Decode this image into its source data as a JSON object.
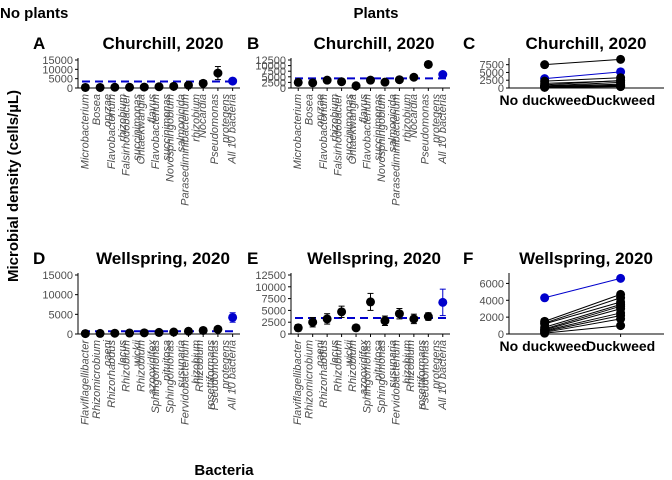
{
  "figure": {
    "header_left": "No plants",
    "header_center": "Plants",
    "y_axis_title": "Microbial density (cells/µL)",
    "x_axis_title": "Bacteria"
  },
  "colors": {
    "point": "#000000",
    "all": "#0000cc",
    "ref": "#0000cc",
    "axis": "#000000"
  },
  "chart_data": [
    {
      "panel": "A",
      "title": "Churchill, 2020",
      "type": "scatter",
      "condition": "No plants",
      "ylim": [
        0,
        15000
      ],
      "yticks": [
        0,
        5000,
        10000,
        15000
      ],
      "reference_line": 3500,
      "categories": [
        "Microbacterium",
        "Bosea\noryzae",
        "Flavobacterium\nrhizobium",
        "Falsirhodobacter\nsuccinimonas",
        "Ohtaekwangia\nflavus",
        "Flavobacterium\nsuccinimonas",
        "Novosphingobium\nsalmonicida",
        "Parasediminibacterium\nrhizobium",
        "Nocardia",
        "Pseudomonas\nprotegens",
        "All 10 bacteria"
      ],
      "values": [
        300,
        300,
        400,
        400,
        500,
        700,
        900,
        1500,
        2500,
        8000,
        3700
      ],
      "errors": [
        150,
        150,
        200,
        200,
        200,
        300,
        400,
        600,
        1000,
        3500,
        1000
      ]
    },
    {
      "panel": "B",
      "title": "Churchill, 2020",
      "type": "scatter",
      "condition": "Plants",
      "ylim": [
        0,
        12500
      ],
      "yticks": [
        0,
        2500,
        5000,
        7500,
        10000,
        12500
      ],
      "reference_line": 4300,
      "categories": [
        "Microbacterium",
        "Bosea\noryzae",
        "Flavobacterium\nrhizobium",
        "Falsirhodobacter\nsuccinimonas",
        "Ohtaekwangia\nflavus",
        "Flavobacterium\nsuccinimonas",
        "Novosphingobium\nsalmonicida",
        "Parasediminibacterium\nrhizobium",
        "Nocardia",
        "Pseudomonas\nprotegens",
        "All 10 bacteria"
      ],
      "values": [
        2500,
        2300,
        3500,
        2800,
        1000,
        3500,
        2600,
        3700,
        4800,
        10500,
        6000
      ],
      "errors": [
        600,
        600,
        700,
        600,
        500,
        700,
        600,
        700,
        900,
        1200,
        1100
      ]
    },
    {
      "panel": "C",
      "title": "Churchill, 2020",
      "type": "line",
      "ylim": [
        0,
        9000
      ],
      "yticks": [
        0,
        2500,
        5000,
        7500
      ],
      "categories": [
        "No duckweed",
        "Duckweed"
      ],
      "series": [
        {
          "values": [
            7500,
            9200
          ]
        },
        {
          "values": [
            3000,
            5200
          ],
          "all": true
        },
        {
          "values": [
            2200,
            3300
          ]
        },
        {
          "values": [
            1500,
            2300
          ]
        },
        {
          "values": [
            1000,
            2400
          ]
        },
        {
          "values": [
            700,
            1800
          ]
        },
        {
          "values": [
            600,
            1200
          ]
        },
        {
          "values": [
            400,
            900
          ]
        },
        {
          "values": [
            300,
            700
          ]
        },
        {
          "values": [
            250,
            500
          ]
        },
        {
          "values": [
            200,
            450
          ]
        }
      ]
    },
    {
      "panel": "D",
      "title": "Wellspring, 2020",
      "type": "scatter",
      "condition": "No plants",
      "ylim": [
        0,
        15000
      ],
      "yticks": [
        0,
        5000,
        10000,
        15000
      ],
      "reference_line": 700,
      "categories": [
        "Flaviflagellibacter",
        "Rhizomicrobium\ncaeni",
        "Rhizorhabdus\nlacus",
        "Rhizobium\nwickii",
        "Rhizobium\nazooxidifex",
        "Sphingomonas\npituitosa",
        "Sphingomonas\nsusunaria",
        "Fervidobacterium\nhizobium",
        "Rhizobium\nrosettiformans",
        "Pseudomonas\nprotegens",
        "All 10 bacteria"
      ],
      "values": [
        100,
        150,
        200,
        250,
        300,
        400,
        500,
        700,
        900,
        1200,
        4200
      ],
      "errors": [
        80,
        100,
        120,
        150,
        200,
        250,
        300,
        400,
        500,
        700,
        1200
      ]
    },
    {
      "panel": "E",
      "title": "Wellspring, 2020",
      "type": "scatter",
      "condition": "Plants",
      "ylim": [
        0,
        12500
      ],
      "yticks": [
        0,
        2500,
        5000,
        7500,
        10000,
        12500
      ],
      "reference_line": 3400,
      "categories": [
        "Flaviflagellibacter",
        "Rhizomicrobium\ncaeni",
        "Rhizorhabdus\nlacus",
        "Rhizobium\nwickii",
        "Rhizobium\nazooxidifex",
        "Sphingomonas\npituitosa",
        "Sphingomonas\nsusunaria",
        "Fervidobacterium\nhizobium",
        "Rhizobium\nrosettiformans",
        "Pseudomonas\nprotegens",
        "All 10 bacteria"
      ],
      "values": [
        1300,
        2500,
        3200,
        4700,
        1300,
        6800,
        2800,
        4300,
        3200,
        3700,
        6700
      ],
      "errors": [
        700,
        1000,
        1100,
        1200,
        600,
        1800,
        1000,
        1100,
        1000,
        800,
        2800
      ]
    },
    {
      "panel": "F",
      "title": "Wellspring, 2020",
      "type": "line",
      "ylim": [
        0,
        7000
      ],
      "yticks": [
        0,
        2000,
        4000,
        6000
      ],
      "categories": [
        "No duckweed",
        "Duckweed"
      ],
      "series": [
        {
          "values": [
            4300,
            6600
          ],
          "all": true
        },
        {
          "values": [
            1500,
            4700
          ]
        },
        {
          "values": [
            1300,
            4300
          ]
        },
        {
          "values": [
            1200,
            3800
          ]
        },
        {
          "values": [
            800,
            3500
          ]
        },
        {
          "values": [
            600,
            3300
          ]
        },
        {
          "values": [
            500,
            3000
          ]
        },
        {
          "values": [
            400,
            2500
          ]
        },
        {
          "values": [
            300,
            2200
          ]
        },
        {
          "values": [
            200,
            1800
          ]
        },
        {
          "values": [
            100,
            1000
          ]
        }
      ]
    }
  ]
}
